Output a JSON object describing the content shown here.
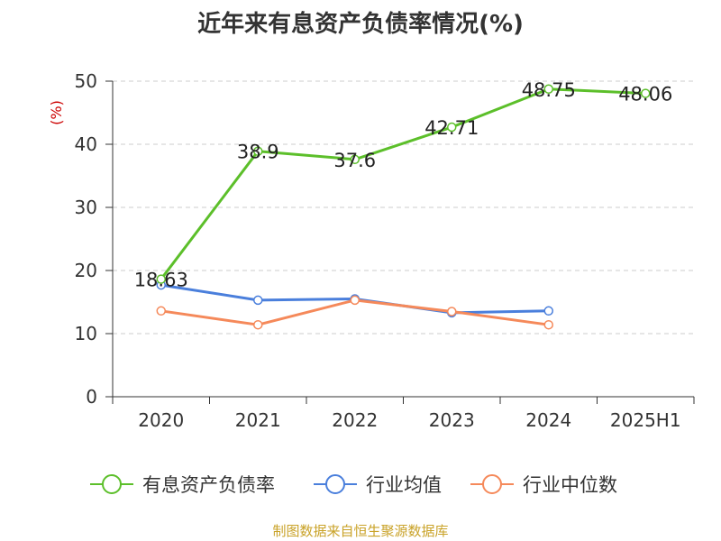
{
  "chart_data": {
    "type": "line",
    "title": "近年来有息资产负债率情况(%)",
    "ylabel": "(%)",
    "categories": [
      "2020",
      "2021",
      "2022",
      "2023",
      "2024",
      "2025H1"
    ],
    "ylim": [
      0,
      50
    ],
    "yticks": [
      0,
      10,
      20,
      30,
      40,
      50
    ],
    "grid": true,
    "legend_position": "bottom",
    "series": [
      {
        "name": "有息资产负债率",
        "color": "#5cbf2a",
        "values": [
          18.63,
          38.9,
          37.6,
          42.71,
          48.75,
          48.06
        ],
        "labels": [
          "18.63",
          "38.9",
          "37.6",
          "42.71",
          "48.75",
          "48.06"
        ]
      },
      {
        "name": "行业均值",
        "color": "#4a7fdc",
        "values": [
          17.7,
          15.3,
          15.5,
          13.3,
          13.6,
          null
        ]
      },
      {
        "name": "行业中位数",
        "color": "#f5895a",
        "values": [
          13.6,
          11.4,
          15.3,
          13.5,
          11.4,
          null
        ]
      }
    ]
  },
  "source": "制图数据来自恒生聚源数据库"
}
